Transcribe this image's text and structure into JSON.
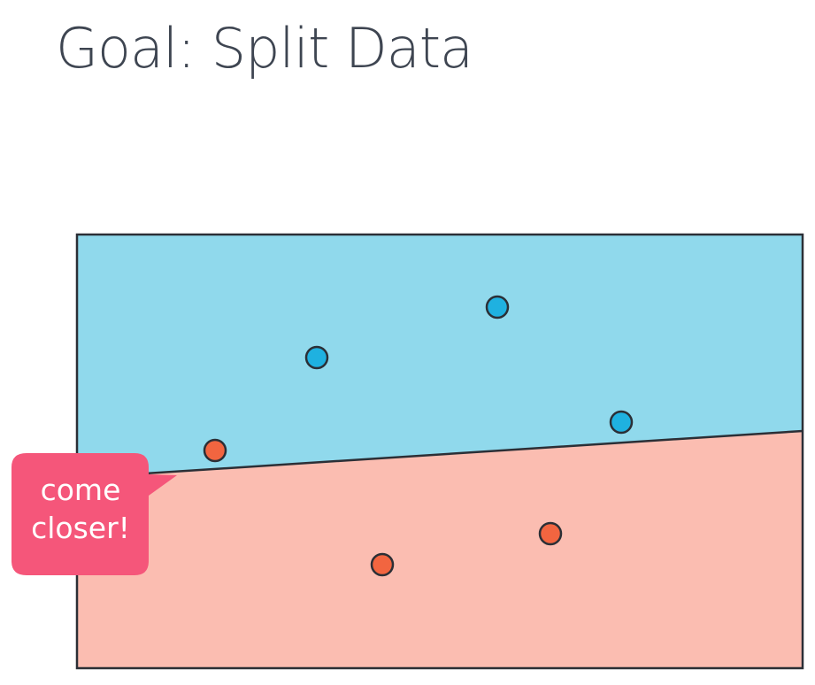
{
  "slide": {
    "title": "Goal: Split Data",
    "callout": "come closer!"
  }
}
